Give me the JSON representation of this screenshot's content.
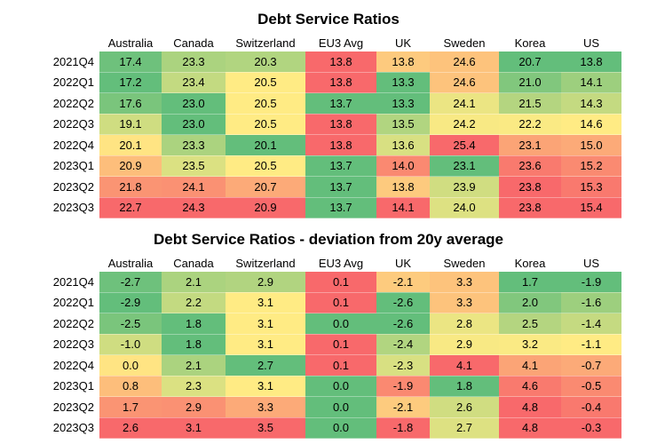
{
  "chart_data": [
    {
      "type": "table",
      "title": "Debt Service Ratios",
      "columns": [
        "Australia",
        "Canada",
        "Switzerland",
        "EU3 Avg",
        "UK",
        "Sweden",
        "Korea",
        "US"
      ],
      "rows": [
        "2021Q4",
        "2022Q1",
        "2022Q2",
        "2022Q3",
        "2022Q4",
        "2023Q1",
        "2023Q2",
        "2023Q3"
      ],
      "values": [
        [
          "17.4",
          "23.3",
          "20.3",
          "13.8",
          "13.8",
          "24.6",
          "20.7",
          "13.8"
        ],
        [
          "17.2",
          "23.4",
          "20.5",
          "13.8",
          "13.3",
          "24.6",
          "21.0",
          "14.1"
        ],
        [
          "17.6",
          "23.0",
          "20.5",
          "13.7",
          "13.3",
          "24.1",
          "21.5",
          "14.3"
        ],
        [
          "19.1",
          "23.0",
          "20.5",
          "13.8",
          "13.5",
          "24.2",
          "22.2",
          "14.6"
        ],
        [
          "20.1",
          "23.3",
          "20.1",
          "13.8",
          "13.6",
          "25.4",
          "23.1",
          "15.0"
        ],
        [
          "20.9",
          "23.5",
          "20.5",
          "13.7",
          "14.0",
          "23.1",
          "23.6",
          "15.2"
        ],
        [
          "21.8",
          "24.1",
          "20.7",
          "13.7",
          "13.8",
          "23.9",
          "23.8",
          "15.3"
        ],
        [
          "22.7",
          "24.3",
          "20.9",
          "13.7",
          "14.1",
          "24.0",
          "23.8",
          "15.4"
        ]
      ],
      "color_scale": {
        "low": "#63be7b",
        "mid": "#ffeb84",
        "high": "#f8696b"
      }
    },
    {
      "type": "table",
      "title": "Debt Service Ratios - deviation from 20y average",
      "columns": [
        "Australia",
        "Canada",
        "Switzerland",
        "EU3 Avg",
        "UK",
        "Sweden",
        "Korea",
        "US"
      ],
      "rows": [
        "2021Q4",
        "2022Q1",
        "2022Q2",
        "2022Q3",
        "2022Q4",
        "2023Q1",
        "2023Q2",
        "2023Q3"
      ],
      "values": [
        [
          "-2.7",
          "2.1",
          "2.9",
          "0.1",
          "-2.1",
          "3.3",
          "1.7",
          "-1.9"
        ],
        [
          "-2.9",
          "2.2",
          "3.1",
          "0.1",
          "-2.6",
          "3.3",
          "2.0",
          "-1.6"
        ],
        [
          "-2.5",
          "1.8",
          "3.1",
          "0.0",
          "-2.6",
          "2.8",
          "2.5",
          "-1.4"
        ],
        [
          "-1.0",
          "1.8",
          "3.1",
          "0.1",
          "-2.4",
          "2.9",
          "3.2",
          "-1.1"
        ],
        [
          "0.0",
          "2.1",
          "2.7",
          "0.1",
          "-2.3",
          "4.1",
          "4.1",
          "-0.7"
        ],
        [
          "0.8",
          "2.3",
          "3.1",
          "0.0",
          "-1.9",
          "1.8",
          "4.6",
          "-0.5"
        ],
        [
          "1.7",
          "2.9",
          "3.3",
          "0.0",
          "-2.1",
          "2.6",
          "4.8",
          "-0.4"
        ],
        [
          "2.6",
          "3.1",
          "3.5",
          "0.0",
          "-1.8",
          "2.7",
          "4.8",
          "-0.3"
        ]
      ],
      "color_scale": {
        "low": "#63be7b",
        "mid": "#ffeb84",
        "high": "#f8696b"
      }
    }
  ]
}
